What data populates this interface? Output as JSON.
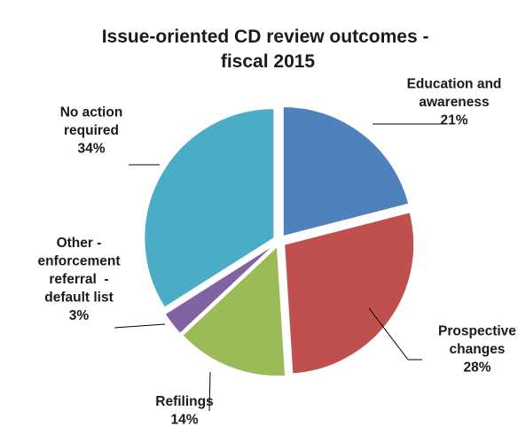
{
  "chart_data": {
    "type": "pie",
    "title_lines": [
      "Issue-oriented CD review outcomes -",
      "fiscal 2015"
    ],
    "start_angle_deg": 0,
    "direction": "clockwise",
    "exploded": true,
    "slices": [
      {
        "label_lines": [
          "Education and",
          "awareness"
        ],
        "percent_label": "21%",
        "value": 21,
        "color": "#4F81BD"
      },
      {
        "label_lines": [
          "Prospective",
          "changes"
        ],
        "percent_label": "28%",
        "value": 28,
        "color": "#C0504D"
      },
      {
        "label_lines": [
          "Refilings"
        ],
        "percent_label": "14%",
        "value": 14,
        "color": "#9BBB59"
      },
      {
        "label_lines": [
          "Other -",
          "enforcement",
          "referral  -",
          "default list"
        ],
        "percent_label": "3%",
        "value": 3,
        "color": "#8064A2"
      },
      {
        "label_lines": [
          "No action",
          "required"
        ],
        "percent_label": "34%",
        "value": 34,
        "color": "#4BACC6"
      }
    ]
  }
}
